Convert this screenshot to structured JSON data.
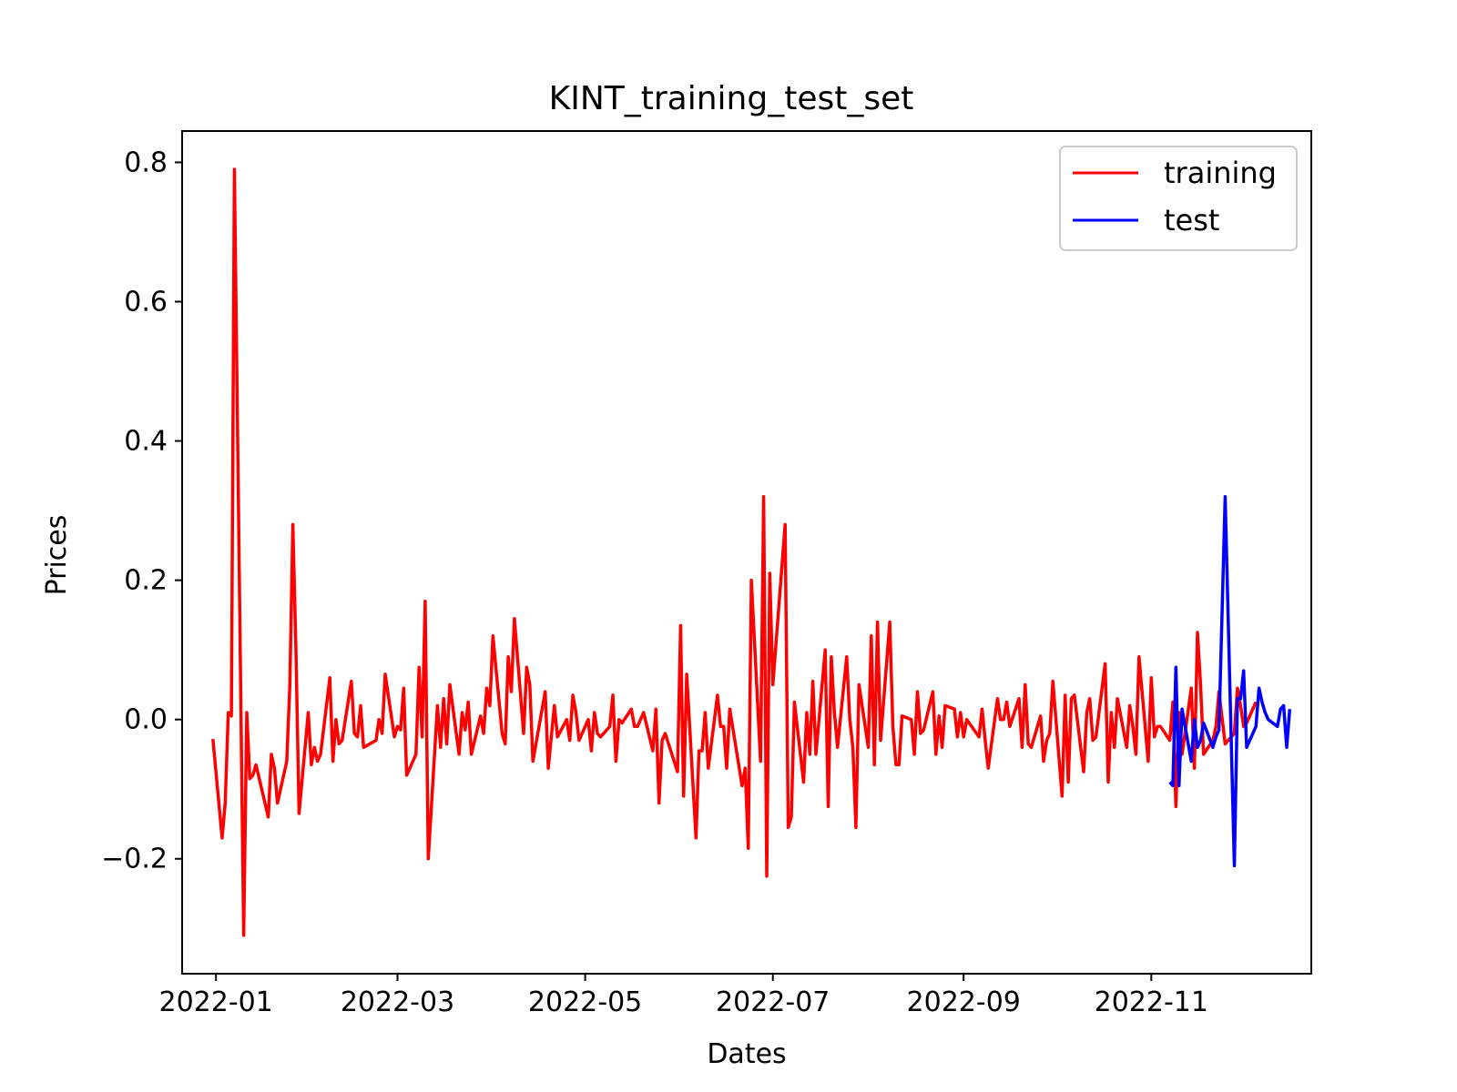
{
  "chart_data": {
    "type": "line",
    "title": "KINT_training_test_set",
    "xlabel": "Dates",
    "ylabel": "Prices",
    "xlim": [
      "2021-12-21",
      "2022-12-23"
    ],
    "ylim": [
      -0.365,
      0.845
    ],
    "x_ticks": [
      {
        "date": "2022-01-01",
        "label": "2022-01"
      },
      {
        "date": "2022-03-01",
        "label": "2022-03"
      },
      {
        "date": "2022-05-01",
        "label": "2022-05"
      },
      {
        "date": "2022-07-01",
        "label": "2022-07"
      },
      {
        "date": "2022-09-01",
        "label": "2022-09"
      },
      {
        "date": "2022-11-01",
        "label": "2022-11"
      }
    ],
    "y_ticks": [
      {
        "value": 0.8,
        "label": "0.8"
      },
      {
        "value": 0.6,
        "label": "0.6"
      },
      {
        "value": 0.4,
        "label": "0.4"
      },
      {
        "value": 0.2,
        "label": "0.2"
      },
      {
        "value": 0.0,
        "label": "0.0"
      },
      {
        "value": -0.2,
        "label": "−0.2"
      }
    ],
    "grid": false,
    "legend_position": "upper right",
    "series": [
      {
        "name": "training",
        "color": "#ff0000",
        "points": [
          [
            "2021-12-31",
            -0.028
          ],
          [
            "2022-01-03",
            -0.17
          ],
          [
            "2022-01-04",
            -0.12
          ],
          [
            "2022-01-05",
            0.01
          ],
          [
            "2022-01-06",
            0.005
          ],
          [
            "2022-01-07",
            0.79
          ],
          [
            "2022-01-10",
            -0.31
          ],
          [
            "2022-01-11",
            0.01
          ],
          [
            "2022-01-12",
            -0.085
          ],
          [
            "2022-01-13",
            -0.08
          ],
          [
            "2022-01-14",
            -0.065
          ],
          [
            "2022-01-18",
            -0.14
          ],
          [
            "2022-01-19",
            -0.05
          ],
          [
            "2022-01-20",
            -0.07
          ],
          [
            "2022-01-21",
            -0.12
          ],
          [
            "2022-01-24",
            -0.06
          ],
          [
            "2022-01-25",
            0.05
          ],
          [
            "2022-01-26",
            0.28
          ],
          [
            "2022-01-27",
            0.1
          ],
          [
            "2022-01-28",
            -0.135
          ],
          [
            "2022-01-31",
            0.01
          ],
          [
            "2022-02-01",
            -0.065
          ],
          [
            "2022-02-02",
            -0.04
          ],
          [
            "2022-02-03",
            -0.06
          ],
          [
            "2022-02-04",
            -0.05
          ],
          [
            "2022-02-07",
            0.06
          ],
          [
            "2022-02-08",
            -0.06
          ],
          [
            "2022-02-09",
            0.0
          ],
          [
            "2022-02-10",
            -0.035
          ],
          [
            "2022-02-11",
            -0.03
          ],
          [
            "2022-02-14",
            0.055
          ],
          [
            "2022-02-15",
            -0.02
          ],
          [
            "2022-02-16",
            -0.025
          ],
          [
            "2022-02-17",
            0.02
          ],
          [
            "2022-02-18",
            -0.04
          ],
          [
            "2022-02-22",
            -0.03
          ],
          [
            "2022-02-23",
            0.0
          ],
          [
            "2022-02-24",
            -0.02
          ],
          [
            "2022-02-25",
            0.065
          ],
          [
            "2022-02-28",
            -0.025
          ],
          [
            "2022-03-01",
            -0.01
          ],
          [
            "2022-03-02",
            -0.015
          ],
          [
            "2022-03-03",
            0.045
          ],
          [
            "2022-03-04",
            -0.08
          ],
          [
            "2022-03-07",
            -0.05
          ],
          [
            "2022-03-08",
            0.075
          ],
          [
            "2022-03-09",
            -0.025
          ],
          [
            "2022-03-10",
            0.17
          ],
          [
            "2022-03-11",
            -0.2
          ],
          [
            "2022-03-14",
            0.02
          ],
          [
            "2022-03-15",
            -0.04
          ],
          [
            "2022-03-16",
            0.03
          ],
          [
            "2022-03-17",
            -0.035
          ],
          [
            "2022-03-18",
            0.05
          ],
          [
            "2022-03-21",
            -0.05
          ],
          [
            "2022-03-22",
            0.01
          ],
          [
            "2022-03-23",
            -0.015
          ],
          [
            "2022-03-24",
            0.025
          ],
          [
            "2022-03-25",
            -0.05
          ],
          [
            "2022-03-28",
            0.005
          ],
          [
            "2022-03-29",
            -0.02
          ],
          [
            "2022-03-30",
            0.045
          ],
          [
            "2022-03-31",
            0.02
          ],
          [
            "2022-04-01",
            0.12
          ],
          [
            "2022-04-04",
            -0.02
          ],
          [
            "2022-04-05",
            -0.035
          ],
          [
            "2022-04-06",
            0.09
          ],
          [
            "2022-04-07",
            0.04
          ],
          [
            "2022-04-08",
            0.145
          ],
          [
            "2022-04-11",
            -0.02
          ],
          [
            "2022-04-12",
            0.075
          ],
          [
            "2022-04-13",
            0.05
          ],
          [
            "2022-04-14",
            -0.06
          ],
          [
            "2022-04-18",
            0.04
          ],
          [
            "2022-04-19",
            -0.07
          ],
          [
            "2022-04-20",
            -0.025
          ],
          [
            "2022-04-21",
            0.02
          ],
          [
            "2022-04-22",
            -0.025
          ],
          [
            "2022-04-25",
            0.0
          ],
          [
            "2022-04-26",
            -0.03
          ],
          [
            "2022-04-27",
            0.035
          ],
          [
            "2022-04-28",
            0.01
          ],
          [
            "2022-04-29",
            -0.03
          ],
          [
            "2022-05-02",
            0.0
          ],
          [
            "2022-05-03",
            -0.045
          ],
          [
            "2022-05-04",
            0.01
          ],
          [
            "2022-05-05",
            -0.02
          ],
          [
            "2022-05-06",
            -0.025
          ],
          [
            "2022-05-09",
            -0.01
          ],
          [
            "2022-05-10",
            0.035
          ],
          [
            "2022-05-11",
            -0.06
          ],
          [
            "2022-05-12",
            0.0
          ],
          [
            "2022-05-13",
            -0.005
          ],
          [
            "2022-05-16",
            0.015
          ],
          [
            "2022-05-17",
            -0.01
          ],
          [
            "2022-05-18",
            -0.01
          ],
          [
            "2022-05-19",
            0.0
          ],
          [
            "2022-05-20",
            0.01
          ],
          [
            "2022-05-23",
            -0.045
          ],
          [
            "2022-05-24",
            0.015
          ],
          [
            "2022-05-25",
            -0.12
          ],
          [
            "2022-05-26",
            -0.03
          ],
          [
            "2022-05-27",
            -0.02
          ],
          [
            "2022-05-31",
            -0.075
          ],
          [
            "2022-06-01",
            0.135
          ],
          [
            "2022-06-02",
            -0.11
          ],
          [
            "2022-06-03",
            0.065
          ],
          [
            "2022-06-06",
            -0.17
          ],
          [
            "2022-06-07",
            -0.045
          ],
          [
            "2022-06-08",
            -0.045
          ],
          [
            "2022-06-09",
            0.01
          ],
          [
            "2022-06-10",
            -0.07
          ],
          [
            "2022-06-13",
            0.035
          ],
          [
            "2022-06-14",
            -0.01
          ],
          [
            "2022-06-15",
            -0.01
          ],
          [
            "2022-06-16",
            -0.07
          ],
          [
            "2022-06-17",
            0.015
          ],
          [
            "2022-06-21",
            -0.095
          ],
          [
            "2022-06-22",
            -0.07
          ],
          [
            "2022-06-23",
            -0.185
          ],
          [
            "2022-06-24",
            0.2
          ],
          [
            "2022-06-27",
            -0.06
          ],
          [
            "2022-06-28",
            0.32
          ],
          [
            "2022-06-29",
            -0.225
          ],
          [
            "2022-06-30",
            0.21
          ],
          [
            "2022-07-01",
            0.05
          ],
          [
            "2022-07-05",
            0.28
          ],
          [
            "2022-07-06",
            -0.155
          ],
          [
            "2022-07-07",
            -0.14
          ],
          [
            "2022-07-08",
            0.025
          ],
          [
            "2022-07-11",
            -0.09
          ],
          [
            "2022-07-12",
            0.01
          ],
          [
            "2022-07-13",
            -0.05
          ],
          [
            "2022-07-14",
            0.055
          ],
          [
            "2022-07-15",
            -0.05
          ],
          [
            "2022-07-18",
            0.1
          ],
          [
            "2022-07-19",
            -0.125
          ],
          [
            "2022-07-20",
            0.09
          ],
          [
            "2022-07-21",
            0.01
          ],
          [
            "2022-07-22",
            -0.04
          ],
          [
            "2022-07-25",
            0.09
          ],
          [
            "2022-07-26",
            0.0
          ],
          [
            "2022-07-27",
            -0.04
          ],
          [
            "2022-07-28",
            -0.155
          ],
          [
            "2022-07-29",
            0.05
          ],
          [
            "2022-08-01",
            -0.04
          ],
          [
            "2022-08-02",
            0.12
          ],
          [
            "2022-08-03",
            -0.065
          ],
          [
            "2022-08-04",
            0.14
          ],
          [
            "2022-08-05",
            -0.03
          ],
          [
            "2022-08-08",
            0.14
          ],
          [
            "2022-08-09",
            -0.01
          ],
          [
            "2022-08-10",
            -0.065
          ],
          [
            "2022-08-11",
            -0.065
          ],
          [
            "2022-08-12",
            0.005
          ],
          [
            "2022-08-15",
            0.0
          ],
          [
            "2022-08-16",
            -0.05
          ],
          [
            "2022-08-17",
            0.04
          ],
          [
            "2022-08-18",
            -0.02
          ],
          [
            "2022-08-19",
            -0.015
          ],
          [
            "2022-08-22",
            0.04
          ],
          [
            "2022-08-23",
            -0.05
          ],
          [
            "2022-08-24",
            0.005
          ],
          [
            "2022-08-25",
            -0.04
          ],
          [
            "2022-08-26",
            0.02
          ],
          [
            "2022-08-29",
            0.015
          ],
          [
            "2022-08-30",
            -0.025
          ],
          [
            "2022-08-31",
            0.01
          ],
          [
            "2022-09-01",
            -0.025
          ],
          [
            "2022-09-02",
            0.0
          ],
          [
            "2022-09-06",
            -0.025
          ],
          [
            "2022-09-07",
            0.015
          ],
          [
            "2022-09-08",
            -0.03
          ],
          [
            "2022-09-09",
            -0.07
          ],
          [
            "2022-09-12",
            0.03
          ],
          [
            "2022-09-13",
            0.0
          ],
          [
            "2022-09-14",
            0.0
          ],
          [
            "2022-09-15",
            0.025
          ],
          [
            "2022-09-16",
            -0.01
          ],
          [
            "2022-09-19",
            0.03
          ],
          [
            "2022-09-20",
            -0.04
          ],
          [
            "2022-09-21",
            0.05
          ],
          [
            "2022-09-22",
            -0.035
          ],
          [
            "2022-09-23",
            -0.04
          ],
          [
            "2022-09-26",
            0.005
          ],
          [
            "2022-09-27",
            -0.06
          ],
          [
            "2022-09-28",
            -0.03
          ],
          [
            "2022-09-29",
            -0.02
          ],
          [
            "2022-09-30",
            0.055
          ],
          [
            "2022-10-03",
            -0.11
          ],
          [
            "2022-10-04",
            0.035
          ],
          [
            "2022-10-05",
            -0.09
          ],
          [
            "2022-10-06",
            0.03
          ],
          [
            "2022-10-07",
            0.035
          ],
          [
            "2022-10-10",
            -0.075
          ],
          [
            "2022-10-11",
            0.01
          ],
          [
            "2022-10-12",
            0.03
          ],
          [
            "2022-10-13",
            -0.03
          ],
          [
            "2022-10-14",
            -0.025
          ],
          [
            "2022-10-17",
            0.08
          ],
          [
            "2022-10-18",
            -0.09
          ],
          [
            "2022-10-19",
            0.01
          ],
          [
            "2022-10-20",
            -0.04
          ],
          [
            "2022-10-21",
            0.03
          ],
          [
            "2022-10-24",
            -0.04
          ],
          [
            "2022-10-25",
            0.02
          ],
          [
            "2022-10-26",
            -0.01
          ],
          [
            "2022-10-27",
            -0.05
          ],
          [
            "2022-10-28",
            0.09
          ],
          [
            "2022-10-31",
            -0.06
          ],
          [
            "2022-11-01",
            0.06
          ],
          [
            "2022-11-02",
            -0.025
          ],
          [
            "2022-11-03",
            -0.01
          ],
          [
            "2022-11-04",
            -0.01
          ],
          [
            "2022-11-07",
            -0.03
          ],
          [
            "2022-11-08",
            0.025
          ],
          [
            "2022-11-09",
            -0.125
          ],
          [
            "2022-11-10",
            0.01
          ],
          [
            "2022-11-11",
            -0.05
          ],
          [
            "2022-11-14",
            0.045
          ],
          [
            "2022-11-15",
            -0.07
          ],
          [
            "2022-11-16",
            0.125
          ],
          [
            "2022-11-17",
            0.05
          ],
          [
            "2022-11-18",
            -0.05
          ],
          [
            "2022-11-21",
            -0.03
          ],
          [
            "2022-11-22",
            -0.01
          ],
          [
            "2022-11-23",
            0.04
          ],
          [
            "2022-11-25",
            -0.035
          ],
          [
            "2022-11-28",
            -0.02
          ],
          [
            "2022-11-29",
            0.045
          ],
          [
            "2022-11-30",
            0.02
          ],
          [
            "2022-12-01",
            -0.01
          ],
          [
            "2022-12-02",
            -0.005
          ],
          [
            "2022-12-05",
            0.025
          ]
        ]
      },
      {
        "name": "test",
        "color": "#0000ff",
        "points": [
          [
            "2022-11-07",
            -0.09
          ],
          [
            "2022-11-08",
            -0.095
          ],
          [
            "2022-11-09",
            0.075
          ],
          [
            "2022-11-10",
            -0.095
          ],
          [
            "2022-11-11",
            0.015
          ],
          [
            "2022-11-14",
            -0.06
          ],
          [
            "2022-11-15",
            0.0
          ],
          [
            "2022-11-16",
            -0.04
          ],
          [
            "2022-11-17",
            -0.03
          ],
          [
            "2022-11-18",
            -0.005
          ],
          [
            "2022-11-21",
            -0.04
          ],
          [
            "2022-11-22",
            -0.025
          ],
          [
            "2022-11-23",
            -0.015
          ],
          [
            "2022-11-25",
            0.32
          ],
          [
            "2022-11-28",
            -0.21
          ],
          [
            "2022-11-29",
            0.03
          ],
          [
            "2022-11-30",
            0.03
          ],
          [
            "2022-12-01",
            0.07
          ],
          [
            "2022-12-02",
            -0.04
          ],
          [
            "2022-12-05",
            -0.01
          ],
          [
            "2022-12-06",
            0.045
          ],
          [
            "2022-12-07",
            0.025
          ],
          [
            "2022-12-08",
            0.01
          ],
          [
            "2022-12-09",
            0.0
          ],
          [
            "2022-12-12",
            -0.01
          ],
          [
            "2022-12-13",
            0.015
          ],
          [
            "2022-12-14",
            0.02
          ],
          [
            "2022-12-15",
            -0.04
          ],
          [
            "2022-12-16",
            0.015
          ]
        ]
      }
    ]
  }
}
